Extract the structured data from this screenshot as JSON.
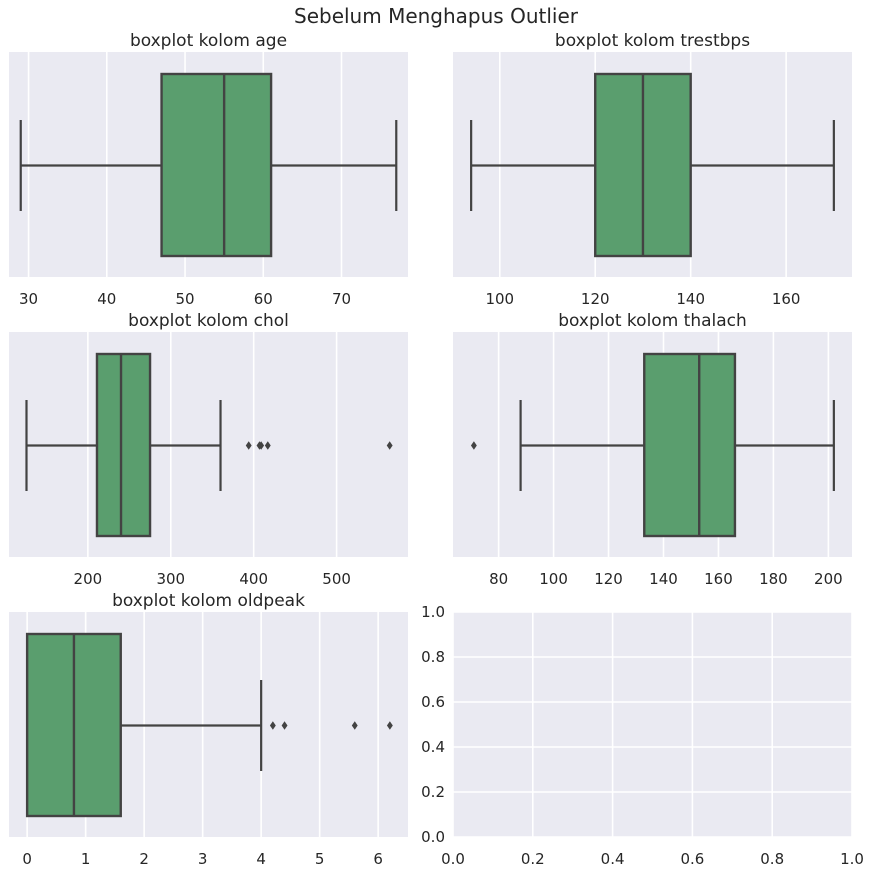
{
  "figure": {
    "title": "Sebelum Menghapus Outlier",
    "colors": {
      "box": "#5a9e6e",
      "line": "#434343",
      "panel": "#eaeaf2",
      "grid": "#ffffff"
    }
  },
  "chart_data": [
    {
      "type": "boxplot",
      "title": "boxplot kolom age",
      "orientation": "horizontal",
      "xlim": [
        27.5,
        78.5
      ],
      "xticks": [
        30,
        40,
        50,
        60,
        70
      ],
      "stats": {
        "whislo": 29,
        "q1": 47,
        "med": 55,
        "q3": 61,
        "whishi": 77
      },
      "fliers": []
    },
    {
      "type": "boxplot",
      "title": "boxplot kolom trestbps",
      "orientation": "horizontal",
      "xlim": [
        90.2,
        173.8
      ],
      "xticks": [
        100,
        120,
        140,
        160
      ],
      "stats": {
        "whislo": 94,
        "q1": 120,
        "med": 130,
        "q3": 140,
        "whishi": 170
      },
      "fliers": []
    },
    {
      "type": "boxplot",
      "title": "boxplot kolom chol",
      "orientation": "horizontal",
      "xlim": [
        104.9,
        586.1
      ],
      "xticks": [
        200,
        300,
        400,
        500
      ],
      "stats": {
        "whislo": 126,
        "q1": 211,
        "med": 240,
        "q3": 275,
        "whishi": 360
      },
      "fliers": [
        394,
        407,
        409,
        417,
        564
      ]
    },
    {
      "type": "boxplot",
      "title": "boxplot kolom thalach",
      "orientation": "horizontal",
      "xlim": [
        63.4,
        208.6
      ],
      "xticks": [
        80,
        100,
        120,
        140,
        160,
        180,
        200
      ],
      "stats": {
        "whislo": 88,
        "q1": 133,
        "med": 153,
        "q3": 166,
        "whishi": 202
      },
      "fliers": [
        71
      ]
    },
    {
      "type": "boxplot",
      "title": "boxplot kolom oldpeak",
      "orientation": "horizontal",
      "xlim": [
        -0.31,
        6.51
      ],
      "xticks": [
        0,
        1,
        2,
        3,
        4,
        5,
        6
      ],
      "stats": {
        "whislo": 0,
        "q1": 0,
        "med": 0.8,
        "q3": 1.6,
        "whishi": 4.0
      },
      "fliers": [
        4.2,
        4.4,
        5.6,
        6.2
      ]
    },
    {
      "type": "empty",
      "title": "",
      "xlim": [
        0,
        1
      ],
      "ylim": [
        0,
        1
      ],
      "xticks": [
        0,
        0.2,
        0.4,
        0.6,
        0.8,
        1
      ],
      "xtick_labels": [
        "0.0",
        "0.2",
        "0.4",
        "0.6",
        "0.8",
        "1.0"
      ],
      "yticks": [
        0,
        0.2,
        0.4,
        0.6,
        0.8,
        1
      ],
      "ytick_labels": [
        "0.0",
        "0.2",
        "0.4",
        "0.6",
        "0.8",
        "1.0"
      ]
    }
  ]
}
